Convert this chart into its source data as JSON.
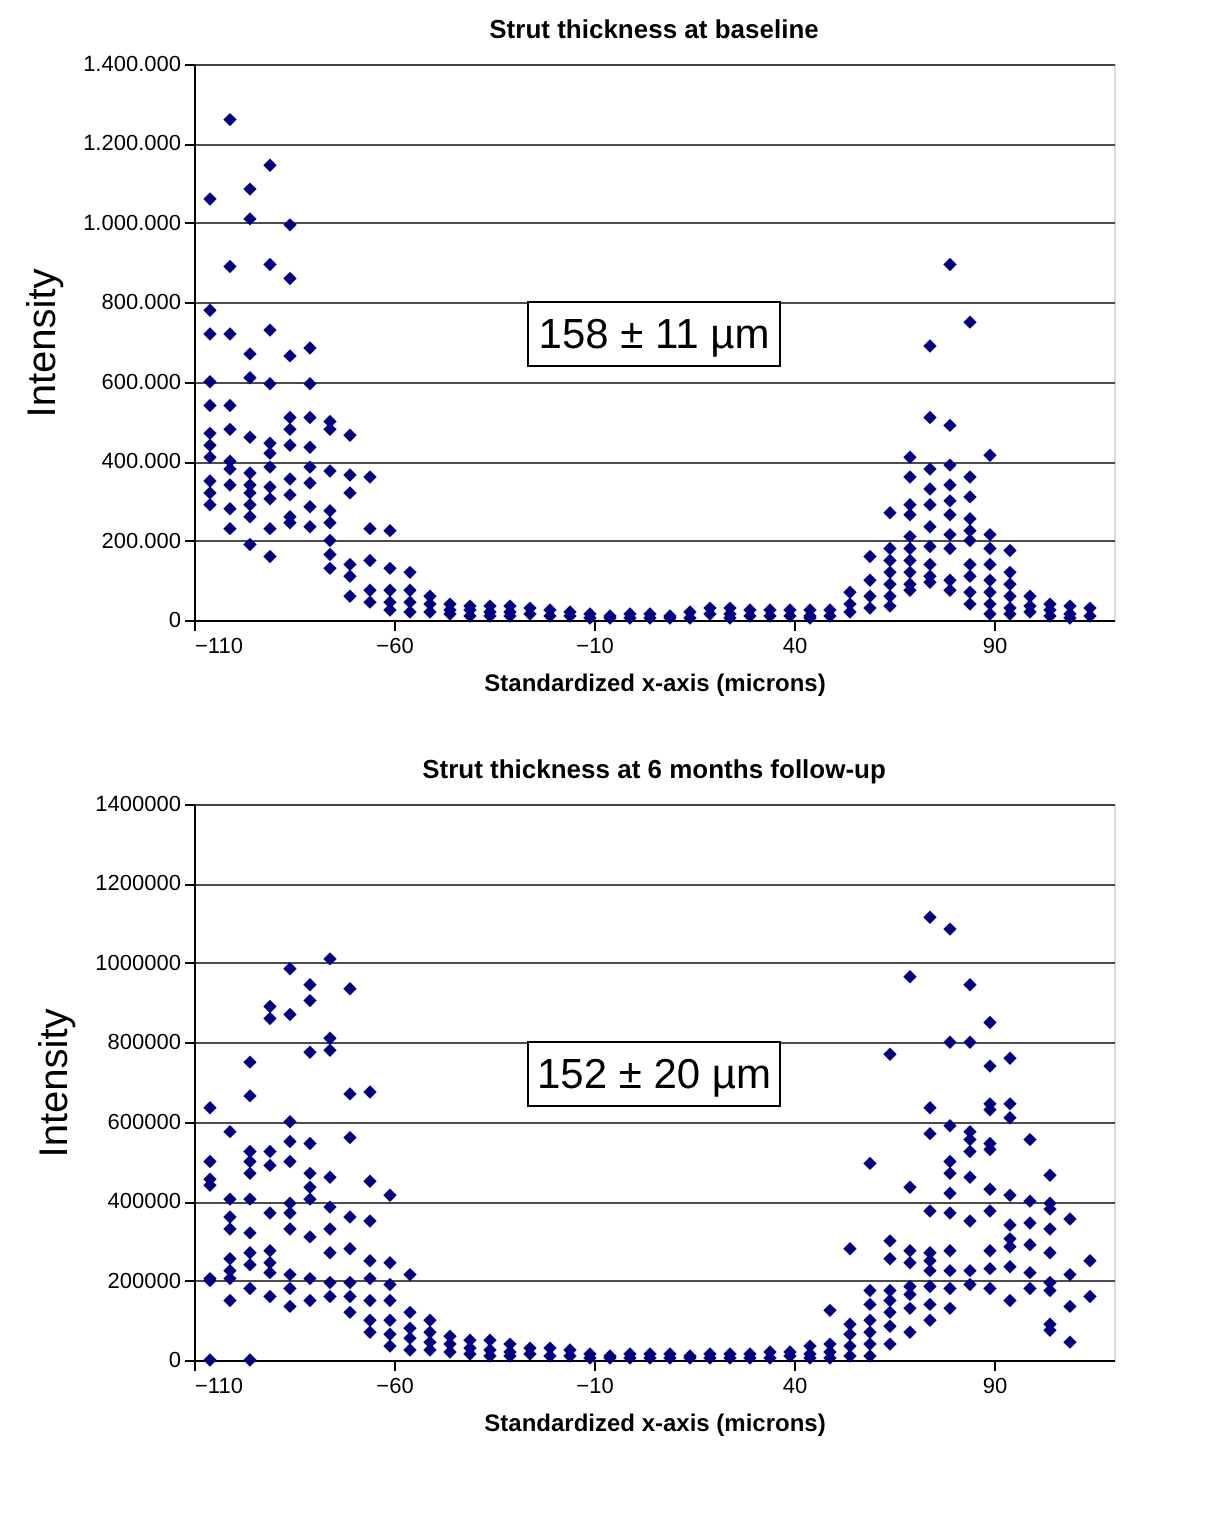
{
  "chart_data": [
    {
      "type": "scatter",
      "title": "Strut thickness at baseline",
      "xlabel": "Standardized x-axis (microns)",
      "ylabel": "Intensity",
      "annotations": [
        "158 ± 11 µm"
      ],
      "x": [
        -106,
        -106,
        -106,
        -106,
        -106,
        -106,
        -106,
        -106,
        -106,
        -106,
        -106,
        -101,
        -101,
        -101,
        -101,
        -101,
        -101,
        -101,
        -101,
        -101,
        -101,
        -96,
        -96,
        -96,
        -96,
        -96,
        -96,
        -96,
        -96,
        -96,
        -96,
        -96,
        -91,
        -91,
        -91,
        -91,
        -91,
        -91,
        -91,
        -91,
        -91,
        -91,
        -91,
        -86,
        -86,
        -86,
        -86,
        -86,
        -86,
        -86,
        -86,
        -86,
        -86,
        -81,
        -81,
        -81,
        -81,
        -81,
        -81,
        -81,
        -81,
        -76,
        -76,
        -76,
        -76,
        -76,
        -76,
        -76,
        -76,
        -71,
        -71,
        -71,
        -71,
        -71,
        -71,
        -66,
        -66,
        -66,
        -66,
        -66,
        -61,
        -61,
        -61,
        -61,
        -61,
        -56,
        -56,
        -56,
        -56,
        -51,
        -51,
        -51,
        -46,
        -46,
        -46,
        -41,
        -41,
        -41,
        -36,
        -36,
        -36,
        -31,
        -31,
        -31,
        -26,
        -26,
        -21,
        -21,
        -16,
        -16,
        -11,
        -11,
        -6,
        -6,
        -1,
        -1,
        4,
        4,
        9,
        9,
        14,
        14,
        19,
        19,
        24,
        24,
        24,
        29,
        29,
        34,
        34,
        39,
        39,
        44,
        44,
        44,
        49,
        49,
        54,
        54,
        54,
        59,
        59,
        59,
        59,
        64,
        64,
        64,
        64,
        64,
        64,
        64,
        69,
        69,
        69,
        69,
        69,
        69,
        69,
        69,
        69,
        69,
        74,
        74,
        74,
        74,
        74,
        74,
        74,
        74,
        74,
        74,
        79,
        79,
        79,
        79,
        79,
        79,
        79,
        79,
        79,
        79,
        84,
        84,
        84,
        84,
        84,
        84,
        84,
        84,
        84,
        84,
        89,
        89,
        89,
        89,
        89,
        89,
        89,
        89,
        94,
        94,
        94,
        94,
        94,
        94,
        99,
        99,
        99,
        104,
        104,
        104,
        109,
        109,
        109,
        114,
        114
      ],
      "series": [
        {
          "color": "#000080",
          "values": [
            1060000,
            780000,
            720000,
            600000,
            540000,
            470000,
            440000,
            410000,
            350000,
            320000,
            290000,
            1260000,
            890000,
            720000,
            540000,
            480000,
            400000,
            380000,
            340000,
            280000,
            230000,
            1085000,
            1010000,
            670000,
            610000,
            460000,
            370000,
            340000,
            320000,
            290000,
            260000,
            190000,
            1145000,
            895000,
            730000,
            595000,
            445000,
            420000,
            385000,
            335000,
            305000,
            230000,
            160000,
            995000,
            860000,
            665000,
            510000,
            480000,
            440000,
            355000,
            315000,
            260000,
            245000,
            685000,
            595000,
            510000,
            435000,
            385000,
            345000,
            285000,
            235000,
            500000,
            480000,
            375000,
            275000,
            245000,
            200000,
            165000,
            130000,
            465000,
            365000,
            320000,
            140000,
            110000,
            60000,
            360000,
            230000,
            150000,
            75000,
            45000,
            225000,
            130000,
            75000,
            45000,
            25000,
            120000,
            75000,
            45000,
            20000,
            60000,
            40000,
            20000,
            40000,
            25000,
            15000,
            35000,
            25000,
            10000,
            35000,
            20000,
            10000,
            35000,
            20000,
            10000,
            30000,
            15000,
            25000,
            10000,
            20000,
            10000,
            15000,
            5000,
            10000,
            5000,
            15000,
            5000,
            15000,
            5000,
            10000,
            5000,
            20000,
            5000,
            30000,
            15000,
            30000,
            15000,
            5000,
            25000,
            10000,
            25000,
            10000,
            25000,
            10000,
            25000,
            10000,
            5000,
            25000,
            10000,
            70000,
            40000,
            20000,
            160000,
            100000,
            60000,
            30000,
            270000,
            180000,
            150000,
            120000,
            90000,
            60000,
            35000,
            410000,
            360000,
            290000,
            265000,
            210000,
            180000,
            150000,
            120000,
            90000,
            75000,
            690000,
            510000,
            380000,
            330000,
            290000,
            235000,
            185000,
            140000,
            110000,
            95000,
            895000,
            490000,
            390000,
            340000,
            300000,
            265000,
            215000,
            180000,
            100000,
            75000,
            750000,
            360000,
            310000,
            255000,
            225000,
            200000,
            140000,
            110000,
            70000,
            40000,
            415000,
            215000,
            180000,
            140000,
            100000,
            70000,
            40000,
            15000,
            175000,
            120000,
            90000,
            60000,
            30000,
            15000,
            60000,
            35000,
            20000,
            40000,
            25000,
            10000,
            35000,
            15000,
            5000,
            30000,
            10000
          ]
        }
      ],
      "xlim": [
        -110,
        120
      ],
      "xticks": [
        -110,
        -60,
        -10,
        40,
        90
      ],
      "ylim": [
        0,
        1400000
      ],
      "yticks": [
        0,
        {
          "value": 200000,
          "label": "200.000"
        },
        {
          "value": 400000,
          "label": "400.000"
        },
        {
          "value": 600000,
          "label": "600.000"
        },
        {
          "value": 800000,
          "label": "800.000"
        },
        {
          "value": 1000000,
          "label": "1.000.000"
        },
        {
          "value": 1200000,
          "label": "1.200.000"
        },
        {
          "value": 1400000,
          "label": "1.400.000"
        }
      ],
      "grid": "y",
      "marker": "diamond"
    },
    {
      "type": "scatter",
      "title": "Strut thickness at 6 months follow-up",
      "xlabel": "Standardized x-axis (microns)",
      "ylabel": "Intensity",
      "annotations": [
        "152 ± 20 µm"
      ],
      "x": [
        -106,
        -106,
        -106,
        -106,
        -106,
        -106,
        -106,
        -101,
        -101,
        -101,
        -101,
        -101,
        -101,
        -101,
        -101,
        -96,
        -96,
        -96,
        -96,
        -96,
        -96,
        -96,
        -96,
        -96,
        -96,
        -96,
        -91,
        -91,
        -91,
        -91,
        -91,
        -91,
        -91,
        -91,
        -91,
        -86,
        -86,
        -86,
        -86,
        -86,
        -86,
        -86,
        -86,
        -86,
        -86,
        -86,
        -81,
        -81,
        -81,
        -81,
        -81,
        -81,
        -81,
        -81,
        -81,
        -81,
        -76,
        -76,
        -76,
        -76,
        -76,
        -76,
        -76,
        -76,
        -76,
        -71,
        -71,
        -71,
        -71,
        -71,
        -71,
        -71,
        -71,
        -66,
        -66,
        -66,
        -66,
        -66,
        -66,
        -66,
        -66,
        -61,
        -61,
        -61,
        -61,
        -61,
        -61,
        -61,
        -56,
        -56,
        -56,
        -56,
        -56,
        -51,
        -51,
        -51,
        -51,
        -46,
        -46,
        -46,
        -41,
        -41,
        -41,
        -36,
        -36,
        -36,
        -31,
        -31,
        -31,
        -26,
        -26,
        -21,
        -21,
        -16,
        -16,
        -11,
        -11,
        -6,
        -6,
        -1,
        -1,
        4,
        4,
        9,
        9,
        14,
        14,
        19,
        19,
        24,
        24,
        29,
        29,
        34,
        34,
        39,
        39,
        44,
        44,
        44,
        49,
        49,
        49,
        49,
        54,
        54,
        54,
        54,
        54,
        59,
        59,
        59,
        59,
        59,
        59,
        59,
        64,
        64,
        64,
        64,
        64,
        64,
        64,
        64,
        69,
        69,
        69,
        69,
        69,
        69,
        69,
        69,
        74,
        74,
        74,
        74,
        74,
        74,
        74,
        74,
        74,
        74,
        79,
        79,
        79,
        79,
        79,
        79,
        79,
        79,
        79,
        79,
        79,
        84,
        84,
        84,
        84,
        84,
        84,
        84,
        84,
        84,
        89,
        89,
        89,
        89,
        89,
        89,
        89,
        89,
        89,
        89,
        89,
        94,
        94,
        94,
        94,
        94,
        94,
        94,
        94,
        94,
        99,
        99,
        99,
        99,
        99,
        99,
        104,
        104,
        104,
        104,
        104,
        104,
        104,
        104,
        104,
        109,
        109,
        109,
        109,
        114,
        114
      ],
      "series": [
        {
          "color": "#000080",
          "values": [
            635000,
            500000,
            455000,
            440000,
            205000,
            200000,
            0,
            575000,
            405000,
            360000,
            330000,
            255000,
            225000,
            205000,
            150000,
            750000,
            665000,
            525000,
            500000,
            470000,
            405000,
            320000,
            270000,
            240000,
            180000,
            0,
            890000,
            860000,
            525000,
            490000,
            370000,
            275000,
            245000,
            220000,
            160000,
            985000,
            870000,
            600000,
            550000,
            500000,
            395000,
            370000,
            330000,
            215000,
            180000,
            135000,
            945000,
            905000,
            775000,
            545000,
            470000,
            435000,
            405000,
            310000,
            205000,
            150000,
            1010000,
            810000,
            780000,
            460000,
            385000,
            330000,
            270000,
            195000,
            160000,
            935000,
            670000,
            560000,
            360000,
            280000,
            195000,
            160000,
            120000,
            675000,
            450000,
            350000,
            250000,
            205000,
            150000,
            100000,
            70000,
            415000,
            245000,
            190000,
            150000,
            100000,
            65000,
            35000,
            215000,
            120000,
            80000,
            55000,
            25000,
            100000,
            70000,
            45000,
            25000,
            60000,
            40000,
            20000,
            50000,
            30000,
            15000,
            50000,
            25000,
            10000,
            40000,
            20000,
            10000,
            30000,
            15000,
            30000,
            10000,
            25000,
            10000,
            15000,
            5000,
            10000,
            5000,
            15000,
            5000,
            15000,
            5000,
            15000,
            5000,
            10000,
            5000,
            15000,
            5000,
            15000,
            5000,
            15000,
            5000,
            20000,
            5000,
            20000,
            10000,
            35000,
            15000,
            5000,
            125000,
            40000,
            20000,
            5000,
            280000,
            90000,
            65000,
            35000,
            10000,
            495000,
            175000,
            140000,
            100000,
            70000,
            40000,
            10000,
            770000,
            300000,
            255000,
            175000,
            150000,
            120000,
            85000,
            40000,
            965000,
            435000,
            275000,
            245000,
            185000,
            165000,
            130000,
            70000,
            1115000,
            635000,
            570000,
            375000,
            270000,
            250000,
            225000,
            185000,
            140000,
            100000,
            1085000,
            800000,
            590000,
            500000,
            470000,
            420000,
            370000,
            275000,
            225000,
            180000,
            130000,
            945000,
            800000,
            575000,
            555000,
            525000,
            460000,
            350000,
            225000,
            190000,
            850000,
            740000,
            645000,
            630000,
            545000,
            530000,
            430000,
            375000,
            275000,
            230000,
            180000,
            760000,
            645000,
            610000,
            415000,
            340000,
            305000,
            285000,
            235000,
            150000,
            555000,
            400000,
            345000,
            290000,
            220000,
            180000,
            465000,
            395000,
            380000,
            330000,
            270000,
            195000,
            175000,
            90000,
            75000,
            355000,
            215000,
            135000,
            45000,
            250000,
            160000
          ]
        }
      ],
      "xlim": [
        -110,
        120
      ],
      "xticks": [
        -110,
        -60,
        -10,
        40,
        90
      ],
      "ylim": [
        0,
        1400000
      ],
      "yticks": [
        0,
        200000,
        400000,
        600000,
        800000,
        1000000,
        1200000,
        1400000
      ],
      "grid": "y",
      "marker": "diamond"
    }
  ]
}
